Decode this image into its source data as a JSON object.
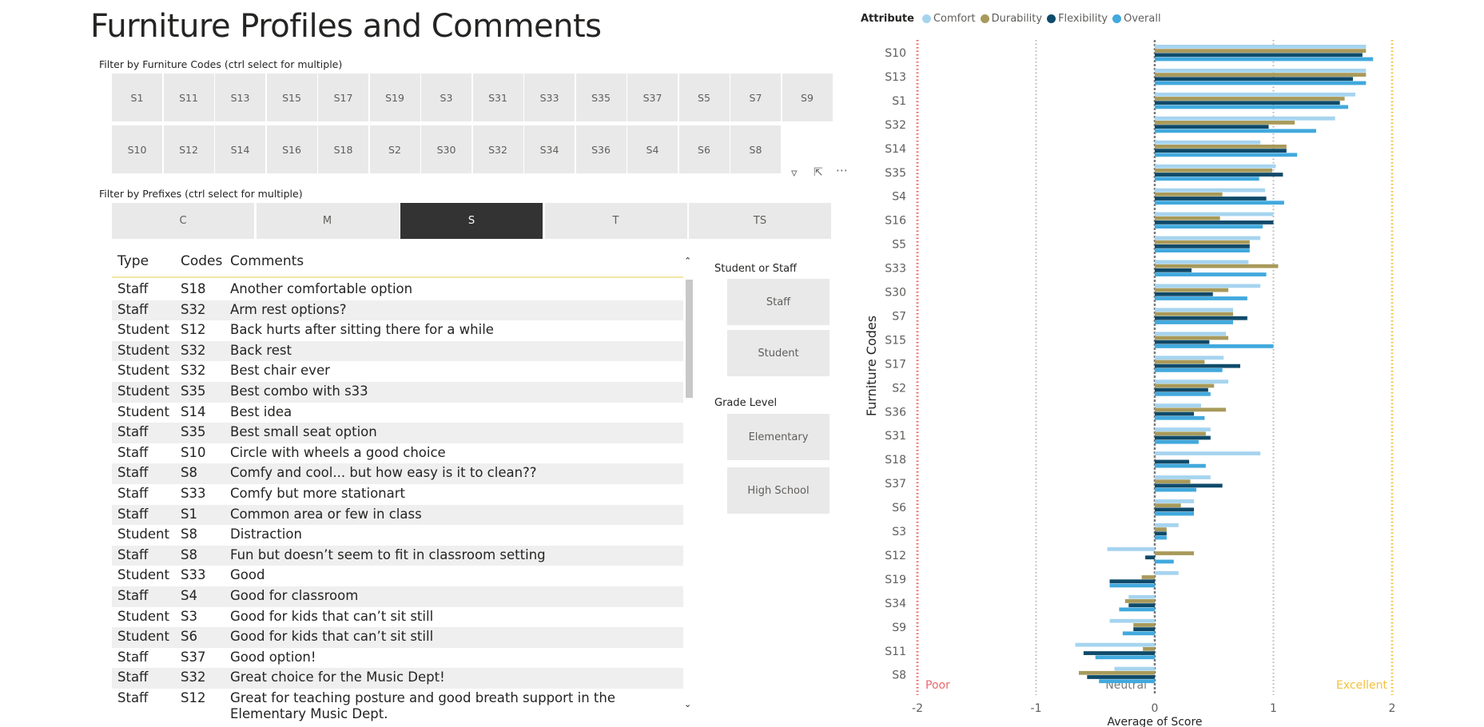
{
  "page": {
    "title": "Furniture Profiles and Comments"
  },
  "furniture_slicer": {
    "title": "Filter by Furniture Codes (ctrl select for multiple)",
    "row1": [
      "S1",
      "S11",
      "S13",
      "S15",
      "S17",
      "S19",
      "S3",
      "S31",
      "S33",
      "S35",
      "S37",
      "S5",
      "S7",
      "S9"
    ],
    "row2": [
      "S10",
      "S12",
      "S14",
      "S16",
      "S18",
      "S2",
      "S30",
      "S32",
      "S34",
      "S36",
      "S4",
      "S6",
      "S8"
    ]
  },
  "visual_header_icons": [
    "filter-icon",
    "focus-mode-icon",
    "more-options-icon"
  ],
  "prefix_slicer": {
    "title": "Filter by Prefixes (ctrl select for multiple)",
    "items": [
      "C",
      "M",
      "S",
      "T",
      "TS"
    ],
    "selected": "S"
  },
  "comments_table": {
    "columns": [
      "Type",
      "Codes",
      "Comments"
    ],
    "rows": [
      [
        "Staff",
        "S18",
        "Another comfortable option"
      ],
      [
        "Staff",
        "S32",
        "Arm rest options?"
      ],
      [
        "Student",
        "S12",
        "Back hurts after sitting there for a while"
      ],
      [
        "Student",
        "S32",
        "Back rest"
      ],
      [
        "Student",
        "S32",
        "Best chair ever"
      ],
      [
        "Student",
        "S35",
        "Best combo with s33"
      ],
      [
        "Student",
        "S14",
        "Best idea"
      ],
      [
        "Staff",
        "S35",
        "Best small seat option"
      ],
      [
        "Staff",
        "S10",
        "Circle with wheels a good choice"
      ],
      [
        "Staff",
        "S8",
        "Comfy and cool... but how easy is it to clean??"
      ],
      [
        "Staff",
        "S33",
        "Comfy but more stationart"
      ],
      [
        "Staff",
        "S1",
        "Common area or few in class"
      ],
      [
        "Student",
        "S8",
        "Distraction"
      ],
      [
        "Staff",
        "S8",
        "Fun but doesn’t seem to fit in classroom setting"
      ],
      [
        "Student",
        "S33",
        "Good"
      ],
      [
        "Staff",
        "S4",
        "Good for classroom"
      ],
      [
        "Student",
        "S3",
        "Good for kids that can’t sit still"
      ],
      [
        "Student",
        "S6",
        "Good for kids that can’t sit still"
      ],
      [
        "Staff",
        "S37",
        "Good option!"
      ],
      [
        "Staff",
        "S32",
        "Great choice for the Music Dept!"
      ],
      [
        "Staff",
        "S12",
        "Great for teaching posture and good breath support in the Elementary Music Dept."
      ]
    ]
  },
  "role_slicer": {
    "title": "Student or Staff",
    "items": [
      "Staff",
      "Student"
    ]
  },
  "grade_slicer": {
    "title": "Grade Level",
    "items": [
      "Elementary",
      "High School"
    ]
  },
  "chart_data": {
    "type": "bar",
    "orientation": "horizontal",
    "legend": {
      "title": "Attribute",
      "position": "top-left"
    },
    "categories": [
      "S10",
      "S13",
      "S1",
      "S32",
      "S14",
      "S35",
      "S4",
      "S16",
      "S5",
      "S33",
      "S30",
      "S7",
      "S15",
      "S17",
      "S2",
      "S36",
      "S31",
      "S18",
      "S37",
      "S6",
      "S3",
      "S12",
      "S19",
      "S34",
      "S9",
      "S11",
      "S8"
    ],
    "series": [
      {
        "name": "Comfort",
        "color": "#a6d4ef",
        "values": [
          1.78,
          1.78,
          1.69,
          1.52,
          0.89,
          1.02,
          0.93,
          1.0,
          0.89,
          0.79,
          0.89,
          0.66,
          0.6,
          0.58,
          0.62,
          0.39,
          0.47,
          0.89,
          0.47,
          0.33,
          0.2,
          -0.4,
          0.2,
          -0.22,
          -0.38,
          -0.67,
          -0.34
        ]
      },
      {
        "name": "Durability",
        "color": "#a89a5b",
        "values": [
          1.78,
          1.78,
          1.6,
          1.18,
          1.11,
          0.99,
          0.57,
          0.55,
          0.8,
          1.04,
          0.62,
          0.66,
          0.62,
          0.42,
          0.5,
          0.6,
          0.43,
          0.0,
          0.3,
          0.22,
          0.1,
          0.33,
          -0.11,
          -0.25,
          -0.18,
          -0.1,
          -0.64
        ]
      },
      {
        "name": "Flexibility",
        "color": "#0f4a6a",
        "values": [
          1.75,
          1.67,
          1.56,
          0.96,
          1.11,
          1.08,
          0.94,
          1.0,
          0.8,
          0.31,
          0.49,
          0.78,
          0.46,
          0.72,
          0.45,
          0.33,
          0.47,
          0.29,
          0.57,
          0.33,
          0.1,
          -0.08,
          -0.38,
          -0.22,
          -0.18,
          -0.6,
          -0.57
        ]
      },
      {
        "name": "Overall",
        "color": "#41a9dd",
        "values": [
          1.84,
          1.78,
          1.63,
          1.36,
          1.2,
          0.88,
          1.09,
          0.91,
          0.8,
          0.94,
          0.78,
          0.66,
          1.0,
          0.57,
          0.47,
          0.42,
          0.37,
          0.43,
          0.35,
          0.33,
          0.1,
          0.16,
          -0.38,
          -0.3,
          -0.27,
          -0.5,
          -0.47
        ]
      }
    ],
    "x_axis": {
      "label": "Average of Score",
      "range": [
        -2,
        2
      ],
      "ticks": [
        "-2",
        "-1",
        "0",
        "1",
        "2"
      ]
    },
    "y_axis": {
      "label": "Furniture Codes"
    },
    "reference_lines": [
      {
        "value": -2,
        "label": "Poor",
        "color": "#e8686c"
      },
      {
        "value": -1,
        "label": "",
        "color": "#b5b5b5"
      },
      {
        "value": 0,
        "label": "Neutral",
        "color": "#7a7a7a"
      },
      {
        "value": 1,
        "label": "",
        "color": "#b5b5b5"
      },
      {
        "value": 2,
        "label": "Excellent",
        "color": "#f3c13a"
      }
    ]
  }
}
